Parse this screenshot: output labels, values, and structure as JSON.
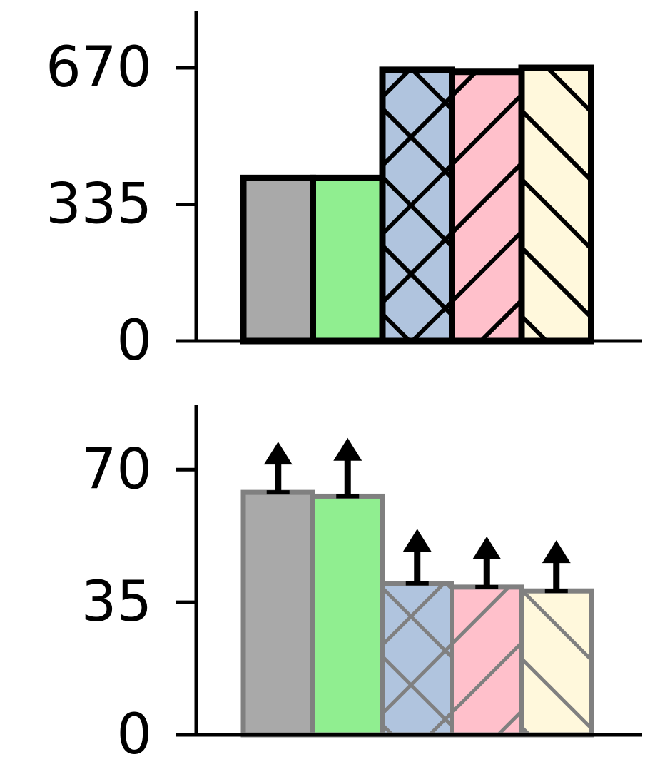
{
  "colors": {
    "bar_fills": [
      "#a9a9a9",
      "#90ee90",
      "#b0c4de",
      "#ffc0cb",
      "#fff8dc"
    ],
    "axis": "#000000",
    "top_bar_edge": "#000000",
    "bottom_bar_edge": "#808080",
    "error_arrow": "#000000"
  },
  "chart_data": [
    {
      "type": "bar",
      "title": "",
      "xlabel": "",
      "ylabel": "",
      "categories": [
        "",
        "",
        "",
        "",
        ""
      ],
      "values": [
        400,
        400,
        665,
        660,
        670
      ],
      "ylim": [
        0,
        810
      ],
      "yticks": [
        0,
        335,
        670
      ],
      "ytick_labels": [
        "0",
        "335",
        "670"
      ],
      "hatches": [
        "none",
        "none",
        "cross",
        "forward-diagonal",
        "back-diagonal"
      ],
      "grid": false,
      "legend": "none"
    },
    {
      "type": "bar",
      "title": "",
      "xlabel": "",
      "ylabel": "",
      "categories": [
        "",
        "",
        "",
        "",
        ""
      ],
      "values": [
        64,
        63,
        40,
        39,
        38
      ],
      "error_upper": [
        13,
        15,
        14,
        13,
        13
      ],
      "error_style": "upward arrow",
      "ylim": [
        0,
        87
      ],
      "yticks": [
        0,
        35,
        70
      ],
      "ytick_labels": [
        "0",
        "35",
        "70"
      ],
      "hatches": [
        "none",
        "none",
        "cross",
        "forward-diagonal",
        "back-diagonal"
      ],
      "grid": false,
      "legend": "none"
    }
  ]
}
